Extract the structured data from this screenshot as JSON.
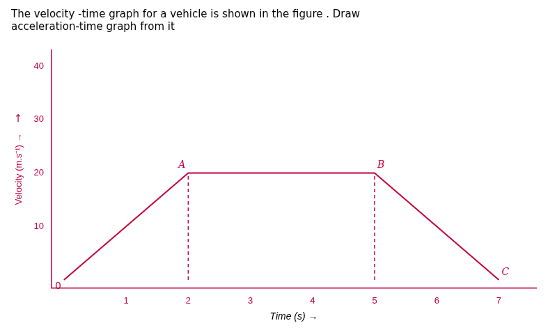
{
  "chart_data": {
    "type": "line",
    "title": [
      "The velocity -time graph for a vehicle is shown in the figure . Draw",
      "acceleration-time graph from it"
    ],
    "xlabel": "Time (s) →",
    "ylabel": "Velocity (m.s⁻¹) →",
    "ylabel_arrow": "↑",
    "x": [
      0,
      2,
      5,
      7
    ],
    "values": [
      0,
      20,
      20,
      0
    ],
    "color": "#c0003c",
    "vlines": [
      {
        "x": 2,
        "ymin": 0,
        "ymax": 20,
        "line_style": "dashed"
      },
      {
        "x": 5,
        "ymin": 0,
        "ymax": 20,
        "line_style": "dashed"
      }
    ],
    "annotations": [
      {
        "text": "A",
        "x": 2,
        "y": 20
      },
      {
        "text": "B",
        "x": 5,
        "y": 20
      },
      {
        "text": "C",
        "x": 7,
        "y": 0
      },
      {
        "text": "0",
        "x": 0,
        "y": 0
      }
    ],
    "xlim": [
      -0.2,
      7.6
    ],
    "ylim": [
      -1.5,
      43
    ],
    "xticks": [
      1,
      2,
      3,
      4,
      5,
      6,
      7
    ],
    "yticks": [
      10,
      20,
      30,
      40
    ],
    "grid": false
  }
}
